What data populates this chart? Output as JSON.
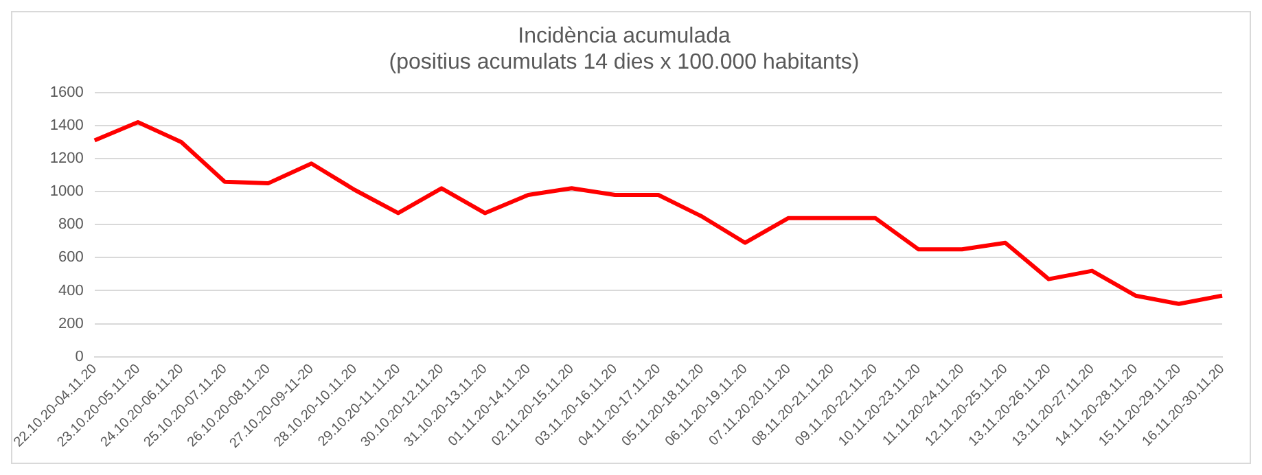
{
  "chart_data": {
    "type": "line",
    "title": [
      "Incidència acumulada",
      "(positius acumulats 14 dies x 100.000 habitants)"
    ],
    "categories": [
      "22.10.20-04.11.20",
      "23.10.20-05.11.20",
      "24.10.20-06.11.20",
      "25.10.20-07.11.20",
      "26.10.20-08.11.20",
      "27.10.20-09-11-20",
      "28.10.20-10.11.20",
      "29.10.20-11.11.20",
      "30.10.20-12.11.20",
      "31.10.20-13.11.20",
      "01.11.20-14.11.20",
      "02.11.20-15.11.20",
      "03.11.20-16.11.20",
      "04.11.20-17.11.20",
      "05.11.20-18.11.20",
      "06.11.20-19.11.20",
      "07.11.20.20.11.20",
      "08.11.20-21.11.20",
      "09.11.20-22.11.20",
      "10.11.20-23.11.20",
      "11.11.20-24.11.20",
      "12.11.20-25.11.20",
      "13.11.20-26.11.20",
      "13.11.20-27.11.20",
      "14.11.20-28.11.20",
      "15.11.20-29.11.20",
      "16.11.20-30.11.20"
    ],
    "series": [
      {
        "color": "#ff0000",
        "values": [
          1310,
          1420,
          1300,
          1060,
          1050,
          1170,
          1010,
          870,
          1020,
          870,
          980,
          1020,
          980,
          980,
          850,
          690,
          840,
          840,
          840,
          650,
          650,
          690,
          470,
          520,
          370,
          320,
          370
        ]
      }
    ],
    "ylim": [
      0,
      1600
    ],
    "yticks": [
      0,
      200,
      400,
      600,
      800,
      1000,
      1200,
      1400,
      1600
    ],
    "grid": "y",
    "legend": false,
    "marker": "none",
    "line_style": "solid"
  }
}
